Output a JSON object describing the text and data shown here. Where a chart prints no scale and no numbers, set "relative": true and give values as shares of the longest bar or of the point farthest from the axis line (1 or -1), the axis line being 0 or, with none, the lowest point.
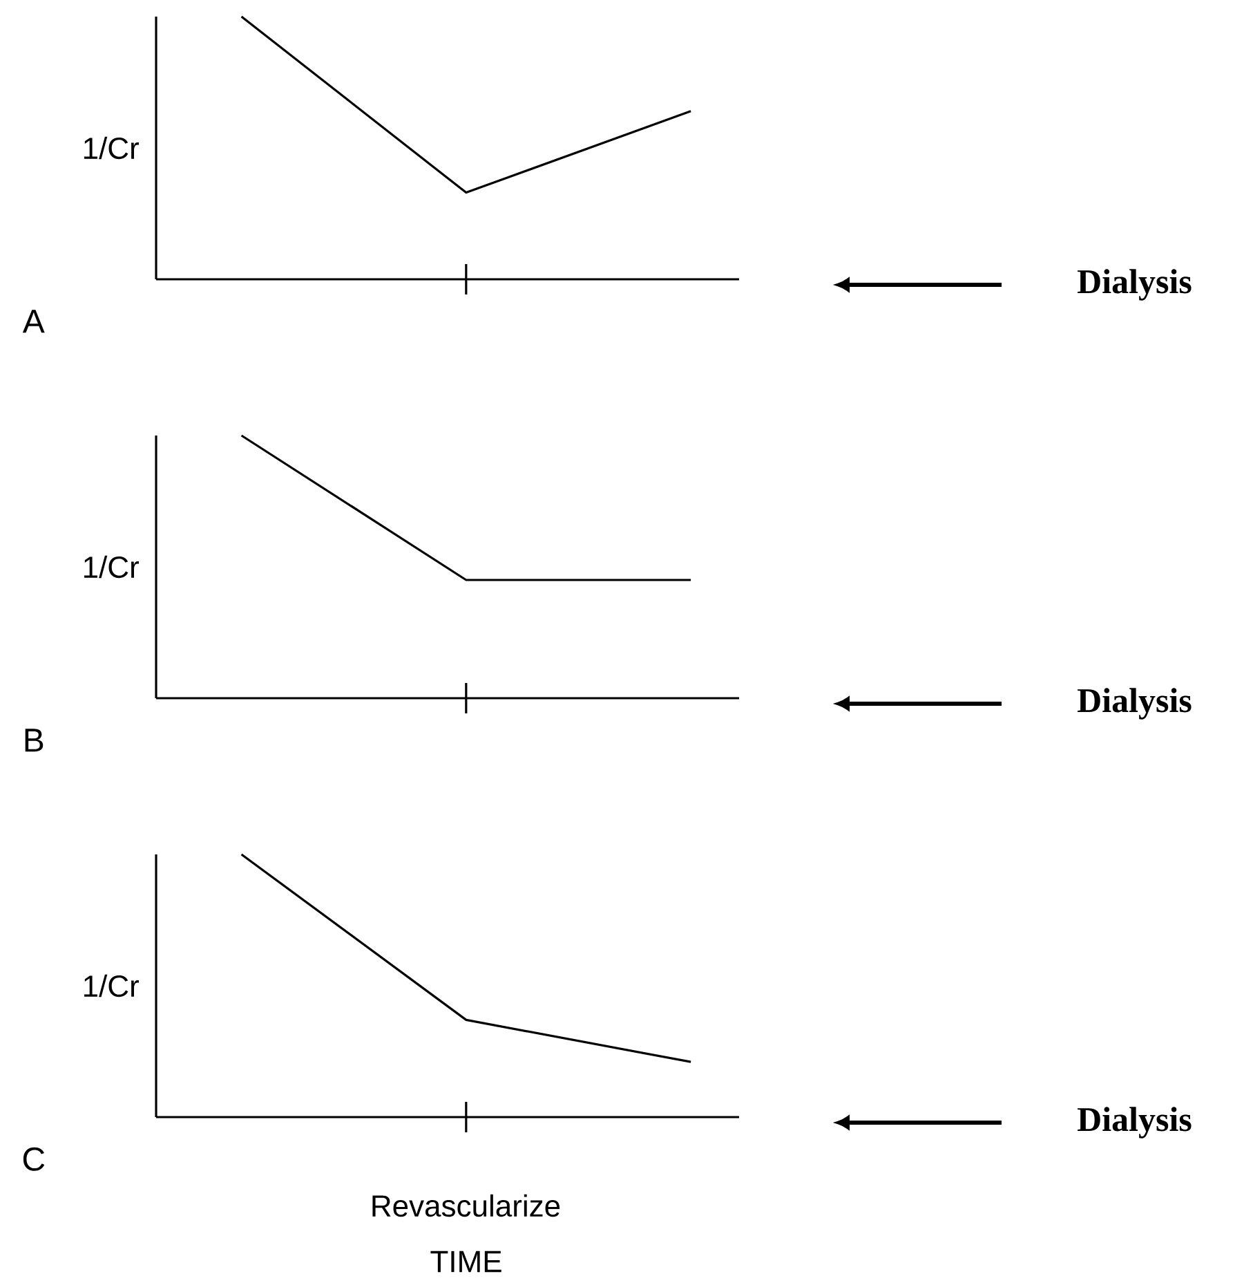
{
  "chart_data": [
    {
      "type": "line",
      "title": "A",
      "ylabel": "1/Cr",
      "categories": [
        null,
        null,
        null
      ],
      "relative": true,
      "annotations": [
        "Dialysis"
      ],
      "series": [
        {
          "color": "#000000",
          "values": [
            1,
            0.33,
            0.64
          ]
        }
      ]
    },
    {
      "type": "line",
      "title": "B",
      "ylabel": "1/Cr",
      "categories": [
        null,
        null,
        null
      ],
      "relative": true,
      "annotations": [
        "Dialysis"
      ],
      "series": [
        {
          "color": "#000000",
          "values": [
            1,
            0.45,
            0.45
          ]
        }
      ]
    },
    {
      "type": "line",
      "title": "C",
      "ylabel": "1/Cr",
      "xlabel": "TIME",
      "categories": [
        null,
        null,
        null
      ],
      "relative": true,
      "annotations": [
        "Dialysis",
        "Revascularize"
      ],
      "series": [
        {
          "color": "#000000",
          "values": [
            1,
            0.37,
            0.21
          ]
        }
      ]
    }
  ]
}
